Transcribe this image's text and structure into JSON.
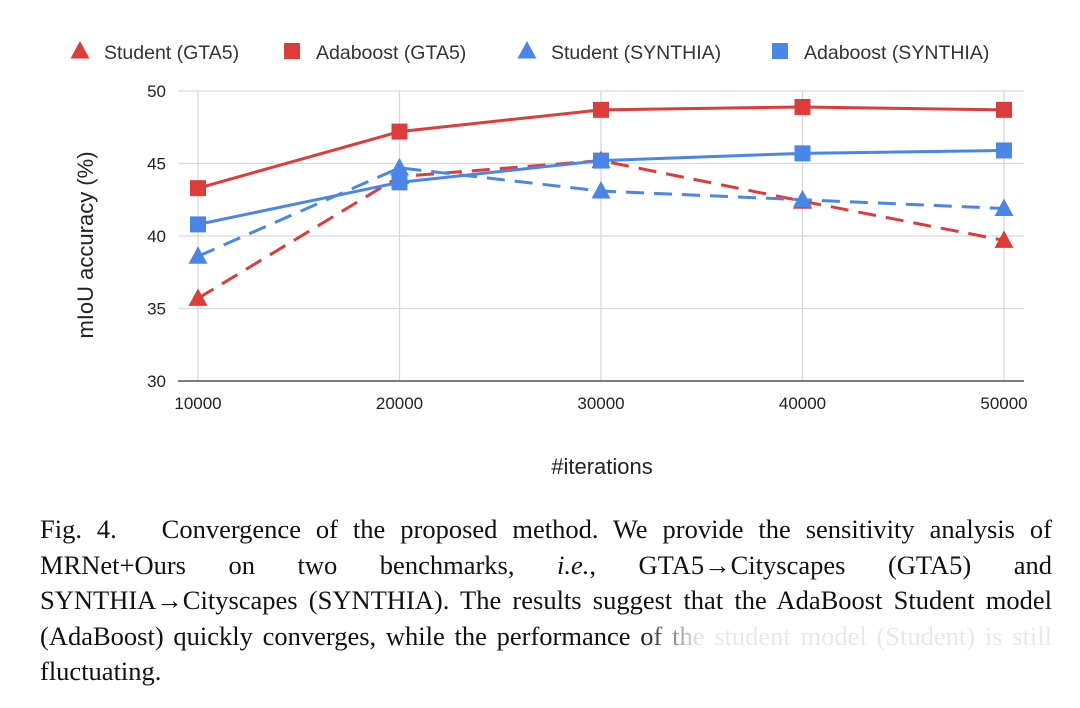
{
  "colors": {
    "red": "#de3b3b",
    "blue": "#4a86e8",
    "grid": "#d9d9d9",
    "axis": "#555555"
  },
  "legend": [
    {
      "label": "Student (GTA5)",
      "marker": "triangle",
      "color": "#de3b3b"
    },
    {
      "label": "Adaboost (GTA5)",
      "marker": "square",
      "color": "#de3b3b"
    },
    {
      "label": "Student (SYNTHIA)",
      "marker": "triangle",
      "color": "#4a86e8"
    },
    {
      "label": "Adaboost (SYNTHIA)",
      "marker": "square",
      "color": "#4a86e8"
    }
  ],
  "chart_data": {
    "type": "line",
    "x": [
      10000,
      20000,
      30000,
      40000,
      50000
    ],
    "categories": [
      "10000",
      "20000",
      "30000",
      "40000",
      "50000"
    ],
    "xlabel": "#iterations",
    "ylabel": "mIoU accuracy (%)",
    "ylim": [
      30,
      50
    ],
    "yticks": [
      30,
      35,
      40,
      45,
      50
    ],
    "grid": true,
    "legend_position": "top",
    "series": [
      {
        "name": "Student (GTA5)",
        "values": [
          35.7,
          44.1,
          45.2,
          42.4,
          39.7
        ],
        "color": "#de3b3b",
        "marker": "triangle",
        "dashed": true
      },
      {
        "name": "Adaboost (GTA5)",
        "values": [
          43.3,
          47.2,
          48.7,
          48.9,
          48.7
        ],
        "color": "#de3b3b",
        "marker": "square",
        "dashed": false
      },
      {
        "name": "Student (SYNTHIA)",
        "values": [
          38.6,
          44.7,
          43.1,
          42.5,
          41.9
        ],
        "color": "#4a86e8",
        "marker": "triangle",
        "dashed": true
      },
      {
        "name": "Adaboost (SYNTHIA)",
        "values": [
          40.8,
          43.7,
          45.2,
          45.7,
          45.9
        ],
        "color": "#4a86e8",
        "marker": "square",
        "dashed": false
      }
    ]
  },
  "caption": {
    "fig_label": "Fig. 4.",
    "text_1": "Convergence of the proposed method. We provide the sensitivity analysis of MRNet+Ours on two benchmarks, ",
    "ie": "i.e.",
    "text_2": ", GTA5→Cityscapes (GTA5) and SYNTHIA→Cityscapes (SYNTHIA). The results suggest that the AdaBoost Student model (AdaBoost) quickly converges, while the performance of the student model (Student) is still fluctuating."
  }
}
